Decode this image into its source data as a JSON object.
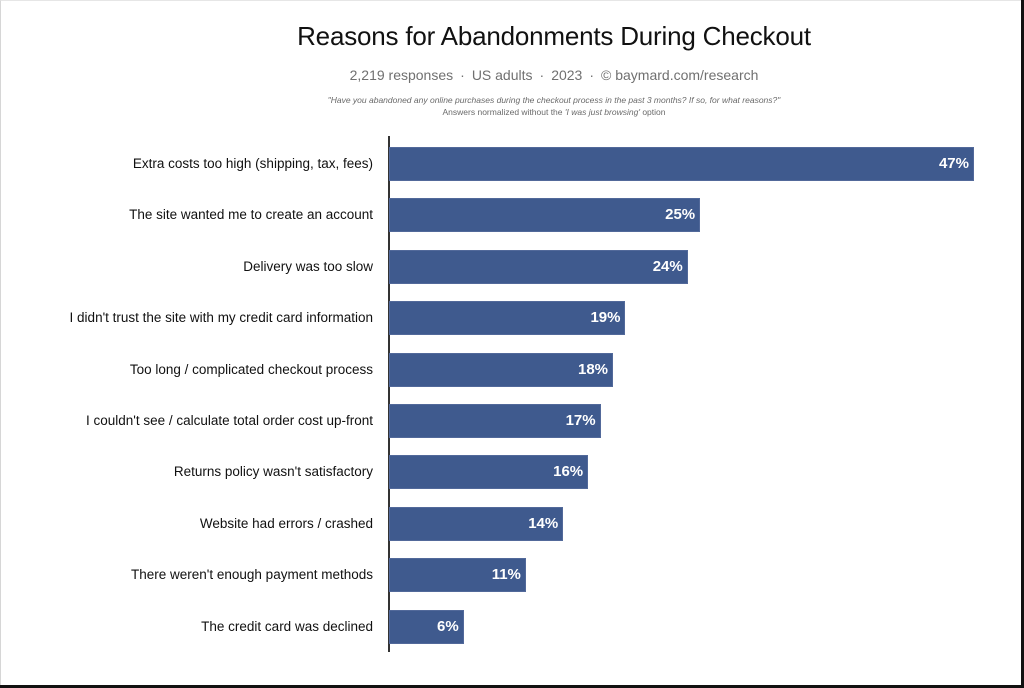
{
  "header": {
    "title": "Reasons for Abandonments During Checkout",
    "subtitle_parts": [
      "2,219 responses",
      "US adults",
      "2023",
      "© baymard.com/research"
    ],
    "separator": "·",
    "question": "\"Have you abandoned any online purchases during the checkout process in the past 3 months? If so, for what reasons?\"",
    "note_prefix": "Answers normalized without the ",
    "note_italic": "'I was just browsing'",
    "note_suffix": " option"
  },
  "style": {
    "bar_color": "#3f5a8e",
    "text_color": "#111111",
    "muted_color": "#707070"
  },
  "chart_data": {
    "type": "bar",
    "orientation": "horizontal",
    "title": "Reasons for Abandonments During Checkout",
    "subtitle": "2,219 responses · US adults · 2023 · © baymard.com/research",
    "annotation": "\"Have you abandoned any online purchases during the checkout process in the past 3 months? If so, for what reasons?\" Answers normalized without the 'I was just browsing' option",
    "xlabel": "",
    "ylabel": "",
    "xlim": [
      0,
      47
    ],
    "grid": false,
    "legend": null,
    "unit": "%",
    "categories": [
      "Extra costs too high (shipping, tax, fees)",
      "The site wanted me to create an account",
      "Delivery was too slow",
      "I didn't trust the site with my credit card information",
      "Too long / complicated checkout process",
      "I couldn't see / calculate total order cost up-front",
      "Returns policy wasn't satisfactory",
      "Website had errors / crashed",
      "There weren't enough payment methods",
      "The credit card was declined"
    ],
    "values": [
      47,
      25,
      24,
      19,
      18,
      17,
      16,
      14,
      11,
      6
    ],
    "value_labels": [
      "47%",
      "25%",
      "24%",
      "19%",
      "18%",
      "17%",
      "16%",
      "14%",
      "11%",
      "6%"
    ]
  }
}
